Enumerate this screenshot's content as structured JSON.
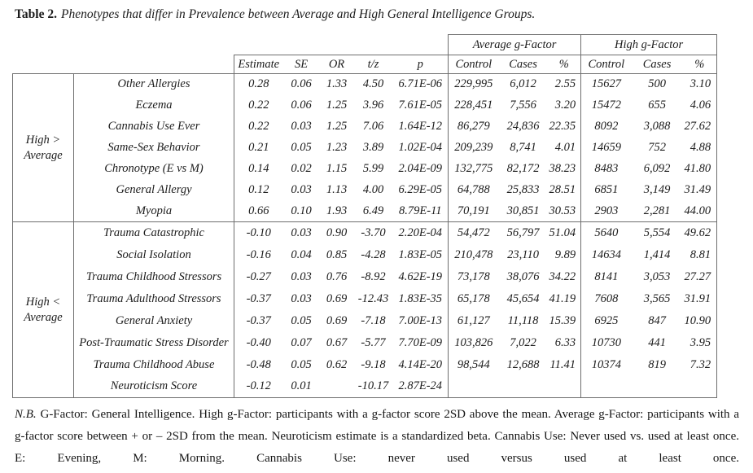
{
  "title": {
    "label": "Table 2.",
    "text": "Phenotypes that differ in Prevalence between Average and High General Intelligence Groups."
  },
  "table": {
    "group_columns": [
      "Average g-Factor",
      "High g-Factor"
    ],
    "stat_headers": [
      "Estimate",
      "SE",
      "OR",
      "t/z",
      "p"
    ],
    "sub_headers": [
      "Control",
      "Cases",
      "%"
    ],
    "sections": [
      {
        "group_label": "High >\nAverage",
        "rows": [
          [
            "Other Allergies",
            "0.28",
            "0.06",
            "1.33",
            "4.50",
            "6.71E-06",
            "229,995",
            "6,012",
            "2.55",
            "15627",
            "500",
            "3.10"
          ],
          [
            "Eczema",
            "0.22",
            "0.06",
            "1.25",
            "3.96",
            "7.61E-05",
            "228,451",
            "7,556",
            "3.20",
            "15472",
            "655",
            "4.06"
          ],
          [
            "Cannabis Use Ever",
            "0.22",
            "0.03",
            "1.25",
            "7.06",
            "1.64E-12",
            "86,279",
            "24,836",
            "22.35",
            "8092",
            "3,088",
            "27.62"
          ],
          [
            "Same-Sex Behavior",
            "0.21",
            "0.05",
            "1.23",
            "3.89",
            "1.02E-04",
            "209,239",
            "8,741",
            "4.01",
            "14659",
            "752",
            "4.88"
          ],
          [
            "Chronotype (E vs M)",
            "0.14",
            "0.02",
            "1.15",
            "5.99",
            "2.04E-09",
            "132,775",
            "82,172",
            "38.23",
            "8483",
            "6,092",
            "41.80"
          ],
          [
            "General Allergy",
            "0.12",
            "0.03",
            "1.13",
            "4.00",
            "6.29E-05",
            "64,788",
            "25,833",
            "28.51",
            "6851",
            "3,149",
            "31.49"
          ],
          [
            "Myopia",
            "0.66",
            "0.10",
            "1.93",
            "6.49",
            "8.79E-11",
            "70,191",
            "30,851",
            "30.53",
            "2903",
            "2,281",
            "44.00"
          ]
        ]
      },
      {
        "group_label": "High <\nAverage",
        "rows": [
          [
            "Trauma Catastrophic",
            "-0.10",
            "0.03",
            "0.90",
            "-3.70",
            "2.20E-04",
            "54,472",
            "56,797",
            "51.04",
            "5640",
            "5,554",
            "49.62"
          ],
          [
            "Social Isolation",
            "-0.16",
            "0.04",
            "0.85",
            "-4.28",
            "1.83E-05",
            "210,478",
            "23,110",
            "9.89",
            "14634",
            "1,414",
            "8.81"
          ],
          [
            "Trauma Childhood Stressors",
            "-0.27",
            "0.03",
            "0.76",
            "-8.92",
            "4.62E-19",
            "73,178",
            "38,076",
            "34.22",
            "8141",
            "3,053",
            "27.27"
          ],
          [
            "Trauma Adulthood Stressors",
            "-0.37",
            "0.03",
            "0.69",
            "-12.43",
            "1.83E-35",
            "65,178",
            "45,654",
            "41.19",
            "7608",
            "3,565",
            "31.91"
          ],
          [
            "General Anxiety",
            "-0.37",
            "0.05",
            "0.69",
            "-7.18",
            "7.00E-13",
            "61,127",
            "11,118",
            "15.39",
            "6925",
            "847",
            "10.90"
          ],
          [
            "Post-Traumatic Stress Disorder",
            "-0.40",
            "0.07",
            "0.67",
            "-5.77",
            "7.70E-09",
            "103,826",
            "7,022",
            "6.33",
            "10730",
            "441",
            "3.95"
          ],
          [
            "Trauma Childhood Abuse",
            "-0.48",
            "0.05",
            "0.62",
            "-9.18",
            "4.14E-20",
            "98,544",
            "12,688",
            "11.41",
            "10374",
            "819",
            "7.32"
          ],
          [
            "Neuroticism Score",
            "-0.12",
            "0.01",
            "",
            "-10.17",
            "2.87E-24",
            "",
            "",
            "",
            "",
            "",
            ""
          ]
        ]
      }
    ]
  },
  "footnote": {
    "nb": "N.B.",
    "line1": "G-Factor: General Intelligence. High g-Factor: participants with a g-factor score 2SD above the mean. Average g-Factor: participants with a",
    "line2": "g-factor score between + or – 2SD from the mean. Neuroticism estimate is a standardized beta. Cannabis Use: Never used vs. used at least once.",
    "line3": "E: Evening, M: Morning. Cannabis Use: never used versus used at least once."
  }
}
